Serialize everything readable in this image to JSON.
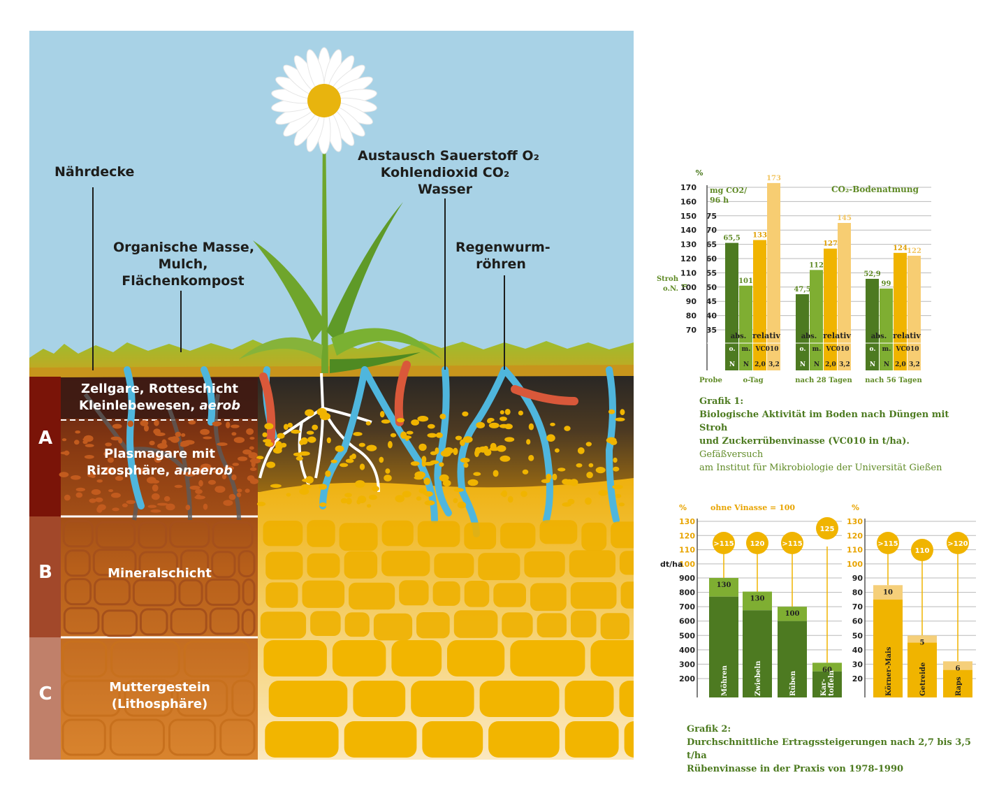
{
  "diagram": {
    "labels": {
      "naehrdecke": "Nährdecke",
      "organisch": [
        "Organische Masse,",
        "Mulch,",
        "Flächenkompost"
      ],
      "austausch": [
        "Austausch Sauerstoff O₂",
        "Kohlendioxid CO₂",
        "Wasser"
      ],
      "regenwurm": [
        "Regenwurm-",
        "röhren"
      ]
    },
    "horizons": [
      {
        "letter": "A",
        "color": "#7a1408"
      },
      {
        "letter": "B",
        "color": "#a2482a"
      },
      {
        "letter": "C",
        "color": "#c0806a"
      }
    ],
    "zones": {
      "zellgare_line1": "Zellgare, Rotteschicht",
      "zellgare_line2_prefix": "Kleinlebewesen, ",
      "zellgare_line2_italic": "aerob",
      "plasmagare_line1": "Plasmagare mit",
      "plasmagare_line2_prefix": "Rizosphäre, ",
      "plasmagare_line2_italic": "anaerob",
      "mineral": "Mineralschicht",
      "mutter_line1": "Muttergestein",
      "mutter_line2": "(Lithosphäre)"
    },
    "colors": {
      "sky": "#a8d2e6",
      "grass": "#8ab42f",
      "topsoil": "#2e2b28",
      "loess": "#f0b400",
      "water": "#4fb6dd",
      "worm": "#e0643a"
    }
  },
  "chart_data": [
    {
      "type": "bar",
      "title": "CO₂-Bodenatmung",
      "y_unit_left": "%",
      "y_unit_abs": [
        "mg CO2/",
        "96 h"
      ],
      "reference_label": [
        "Stroh",
        "o.N."
      ],
      "reference_eq": "=",
      "ylim_percent": [
        70,
        170
      ],
      "yticks_percent": [
        70,
        80,
        90,
        100,
        110,
        120,
        130,
        140,
        150,
        160,
        170
      ],
      "yticks_abs": [
        35,
        40,
        45,
        50,
        55,
        60,
        65,
        70,
        75
      ],
      "probe_label": "Probe",
      "groups": [
        {
          "name": "o-Tag",
          "abs": 65.5,
          "abs_label": "65,5",
          "rel": [
            101,
            133,
            173
          ]
        },
        {
          "name": "nach 28 Tagen",
          "abs": 47.5,
          "abs_label": "47,5",
          "rel": [
            112,
            127,
            145
          ]
        },
        {
          "name": "nach 56 Tagen",
          "abs": 52.9,
          "abs_label": "52,9",
          "rel": [
            99,
            124,
            122
          ]
        }
      ],
      "series": [
        {
          "name": "o. N",
          "color": "#4d7a21"
        },
        {
          "name": "m. N",
          "color": "#7fae32"
        },
        {
          "name": "VC010 2,0",
          "color": "#f0b400"
        },
        {
          "name": "VC010 3,2",
          "color": "#f7cd72"
        }
      ],
      "table_row_labels": {
        "abs": "abs.",
        "relativ": "relativ",
        "o": "o.",
        "m": "m.",
        "vc": "VC010",
        "n": "N",
        "v1": "2,0",
        "v2": "3,2"
      }
    },
    {
      "type": "bar",
      "y_unit_left": "%",
      "note": "ohne Vinasse = 100",
      "y_unit_abs": "dt/ha",
      "yticks_abs": [
        200,
        300,
        400,
        500,
        600,
        700,
        800,
        900
      ],
      "yticks_percent": [
        100,
        110,
        120,
        130
      ],
      "crops": [
        {
          "name": "Möhren",
          "base": 770,
          "total": 900,
          "label": "130",
          "badge": ">115"
        },
        {
          "name": "Zwiebeln",
          "base": 675,
          "total": 805,
          "label": "130",
          "badge": "120"
        },
        {
          "name": "Rüben",
          "base": 600,
          "total": 700,
          "label": "100",
          "badge": ">115"
        },
        {
          "name": "Kar-toffeln",
          "base": 250,
          "total": 310,
          "label": "60",
          "badge": "125"
        }
      ]
    },
    {
      "type": "bar",
      "y_unit_left": "%",
      "yticks_abs": [
        20,
        30,
        40,
        50,
        60,
        70,
        80,
        90
      ],
      "yticks_percent": [
        100,
        110,
        120,
        130
      ],
      "crops": [
        {
          "name": "Körner-Mais",
          "base": 75,
          "total": 85,
          "label": "10",
          "badge": ">115"
        },
        {
          "name": "Getreide",
          "base": 45,
          "total": 50,
          "label": "5",
          "badge": "110"
        },
        {
          "name": "Raps",
          "base": 26,
          "total": 32,
          "label": "6",
          "badge": ">120"
        }
      ]
    }
  ],
  "captions": {
    "grafik1_bold_1": "Grafik 1:",
    "grafik1_bold_2": "Biologische Aktivität im Boden nach Düngen mit Stroh",
    "grafik1_bold_3": "und Zuckerrübenvinasse (VC010 in t/ha).",
    "grafik1_rest_3": " Gefäßversuch",
    "grafik1_rest_4": "am Institut für Mikrobiologie der Universität Gießen",
    "grafik2_1": "Grafik 2:",
    "grafik2_2": "Durchschnittliche Ertragssteigerungen nach 2,7 bis 3,5 t/ha",
    "grafik2_3": "Rübenvinasse in der Praxis von 1978-1990"
  }
}
